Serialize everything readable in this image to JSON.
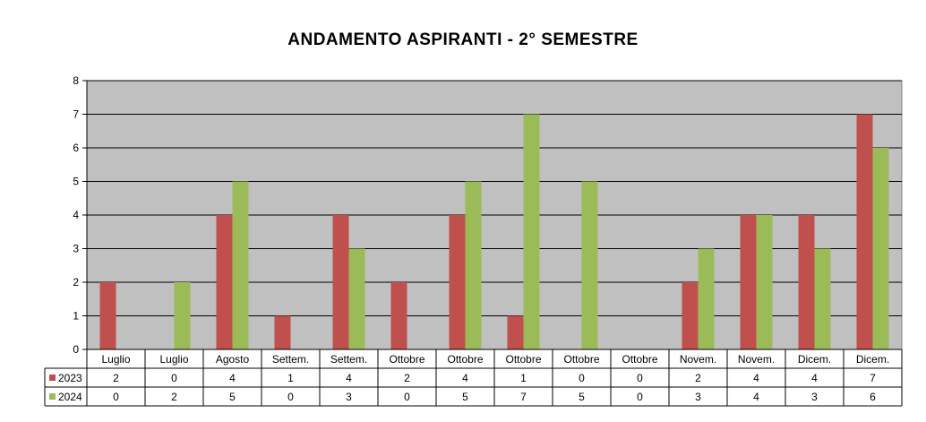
{
  "chart_data": {
    "type": "bar",
    "title": "ANDAMENTO ASPIRANTI  -  2° SEMESTRE",
    "categories": [
      "Luglio",
      "Luglio",
      "Agosto",
      "Settem.",
      "Settem.",
      "Ottobre",
      "Ottobre",
      "Ottobre",
      "Ottobre",
      "Ottobre",
      "Novem.",
      "Novem.",
      "Dicem.",
      "Dicem."
    ],
    "series": [
      {
        "name": "2023",
        "color": "#c0504d",
        "values": [
          2,
          0,
          4,
          1,
          4,
          2,
          4,
          1,
          0,
          0,
          2,
          4,
          4,
          7
        ]
      },
      {
        "name": "2024",
        "color": "#9bbb59",
        "values": [
          0,
          2,
          5,
          0,
          3,
          0,
          5,
          7,
          5,
          0,
          3,
          4,
          3,
          6
        ]
      }
    ],
    "yticks": [
      "0",
      "1",
      "2",
      "3",
      "4",
      "5",
      "6",
      "7",
      "8"
    ],
    "ylim": [
      0,
      8
    ],
    "grid": true,
    "plot_background": "#c0c0c0",
    "legend": "data-table"
  }
}
